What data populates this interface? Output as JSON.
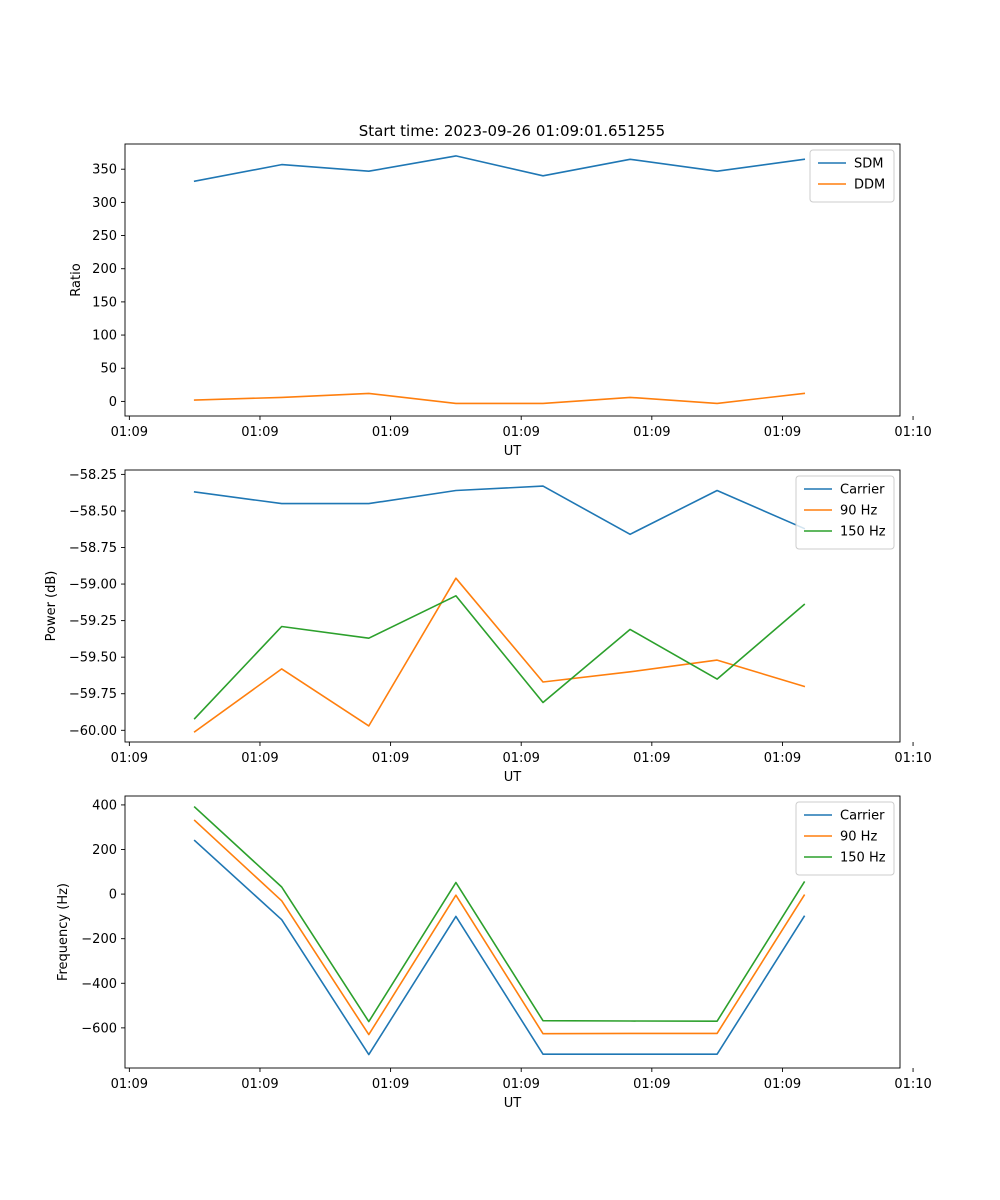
{
  "figure_title": "Start time: 2023-09-26 01:09:01.651255",
  "chart_data": [
    {
      "type": "line",
      "title": "Start time: 2023-09-26 01:09:01.651255",
      "xlabel": "UT",
      "ylabel": "Ratio",
      "x": [
        1,
        2,
        3,
        4,
        5,
        6,
        7,
        8
      ],
      "xlim": [
        0.2,
        9.1
      ],
      "x_ticks": [
        0.25,
        1.75,
        3.25,
        4.75,
        6.25,
        7.75,
        9.25
      ],
      "x_tick_labels": [
        "01:09",
        "01:09",
        "01:09",
        "01:09",
        "01:09",
        "01:09",
        "01:10"
      ],
      "ylim": [
        -22,
        388
      ],
      "y_ticks": [
        0,
        50,
        100,
        150,
        200,
        250,
        300,
        350
      ],
      "y_tick_labels": [
        "0",
        "50",
        "100",
        "150",
        "200",
        "250",
        "300",
        "350"
      ],
      "legend_loc": "upper right",
      "series": [
        {
          "name": "SDM",
          "color": "#1f77b4",
          "values": [
            332,
            357,
            347,
            370,
            340,
            365,
            347,
            365
          ]
        },
        {
          "name": "DDM",
          "color": "#ff7f0e",
          "values": [
            2,
            6,
            12,
            -3,
            -3,
            6,
            -3,
            12
          ]
        }
      ]
    },
    {
      "type": "line",
      "title": "",
      "xlabel": "UT",
      "ylabel": "Power (dB)",
      "x": [
        1,
        2,
        3,
        4,
        5,
        6,
        7,
        8
      ],
      "xlim": [
        0.2,
        9.1
      ],
      "x_ticks": [
        0.25,
        1.75,
        3.25,
        4.75,
        6.25,
        7.75,
        9.25
      ],
      "x_tick_labels": [
        "01:09",
        "01:09",
        "01:09",
        "01:09",
        "01:09",
        "01:09",
        "01:10"
      ],
      "ylim": [
        -60.08,
        -58.22
      ],
      "y_ticks": [
        -60.0,
        -59.75,
        -59.5,
        -59.25,
        -59.0,
        -58.75,
        -58.5,
        -58.25
      ],
      "y_tick_labels": [
        "−60.00",
        "−59.75",
        "−59.50",
        "−59.25",
        "−59.00",
        "−58.75",
        "−58.50",
        "−58.25"
      ],
      "legend_loc": "upper right",
      "series": [
        {
          "name": "Carrier",
          "color": "#1f77b4",
          "values": [
            -58.37,
            -58.45,
            -58.45,
            -58.36,
            -58.33,
            -58.66,
            -58.36,
            -58.62
          ]
        },
        {
          "name": "90 Hz",
          "color": "#ff7f0e",
          "values": [
            -60.01,
            -59.58,
            -59.97,
            -58.96,
            -59.67,
            -59.6,
            -59.52,
            -59.7
          ]
        },
        {
          "name": "150 Hz",
          "color": "#2ca02c",
          "values": [
            -59.92,
            -59.29,
            -59.37,
            -59.08,
            -59.81,
            -59.31,
            -59.65,
            -59.14
          ]
        }
      ]
    },
    {
      "type": "line",
      "title": "",
      "xlabel": "UT",
      "ylabel": "Frequency (Hz)",
      "x": [
        1,
        2,
        3,
        4,
        5,
        6,
        7,
        8
      ],
      "xlim": [
        0.2,
        9.1
      ],
      "x_ticks": [
        0.25,
        1.75,
        3.25,
        4.75,
        6.25,
        7.75,
        9.25
      ],
      "x_tick_labels": [
        "01:09",
        "01:09",
        "01:09",
        "01:09",
        "01:09",
        "01:09",
        "01:10"
      ],
      "ylim": [
        -780,
        440
      ],
      "y_ticks": [
        -600,
        -400,
        -200,
        0,
        200,
        400
      ],
      "y_tick_labels": [
        "−600",
        "−400",
        "−200",
        "0",
        "200",
        "400"
      ],
      "legend_loc": "upper right",
      "series": [
        {
          "name": "Carrier",
          "color": "#1f77b4",
          "values": [
            240,
            -115,
            -720,
            -100,
            -718,
            -718,
            -718,
            -100
          ]
        },
        {
          "name": "90 Hz",
          "color": "#ff7f0e",
          "values": [
            330,
            -30,
            -630,
            -5,
            -626,
            -625,
            -625,
            -5
          ]
        },
        {
          "name": "150 Hz",
          "color": "#2ca02c",
          "values": [
            390,
            32,
            -572,
            52,
            -568,
            -569,
            -570,
            54
          ]
        }
      ]
    }
  ]
}
